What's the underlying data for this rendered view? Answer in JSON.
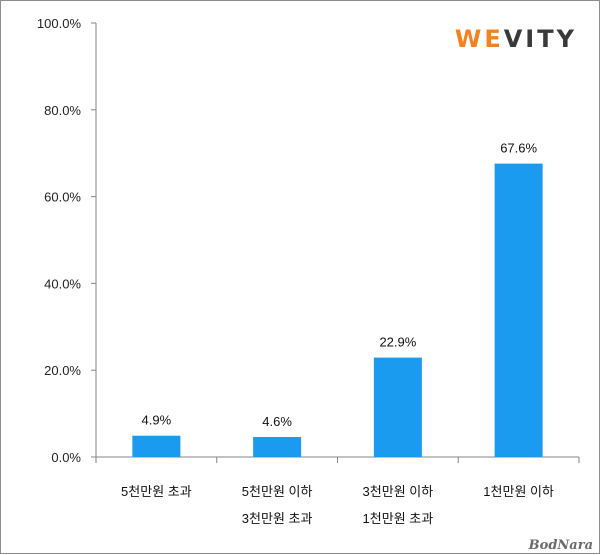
{
  "brand": {
    "logo_prefix": "WE",
    "logo_suffix": "VITY",
    "prefix_color": "#f58220",
    "suffix_color": "#3a3a3a"
  },
  "watermark": "BodNara",
  "chart_data": {
    "type": "bar",
    "categories": [
      [
        "5천만원 초과"
      ],
      [
        "5천만원 이하",
        "3천만원 초과"
      ],
      [
        "3천만원 이하",
        "1천만원 초과"
      ],
      [
        "1천만원 이하"
      ]
    ],
    "values": [
      4.9,
      4.6,
      22.9,
      67.6
    ],
    "value_labels": [
      "4.9%",
      "4.6%",
      "22.9%",
      "67.6%"
    ],
    "ylim": [
      0,
      100
    ],
    "yticks": [
      0,
      20,
      40,
      60,
      80,
      100
    ],
    "ytick_labels": [
      "0.0%",
      "20.0%",
      "40.0%",
      "60.0%",
      "80.0%",
      "100.0%"
    ],
    "bar_color": "#1a9bf0",
    "grid": false,
    "legend": "none",
    "title": "",
    "xlabel": "",
    "ylabel": ""
  }
}
